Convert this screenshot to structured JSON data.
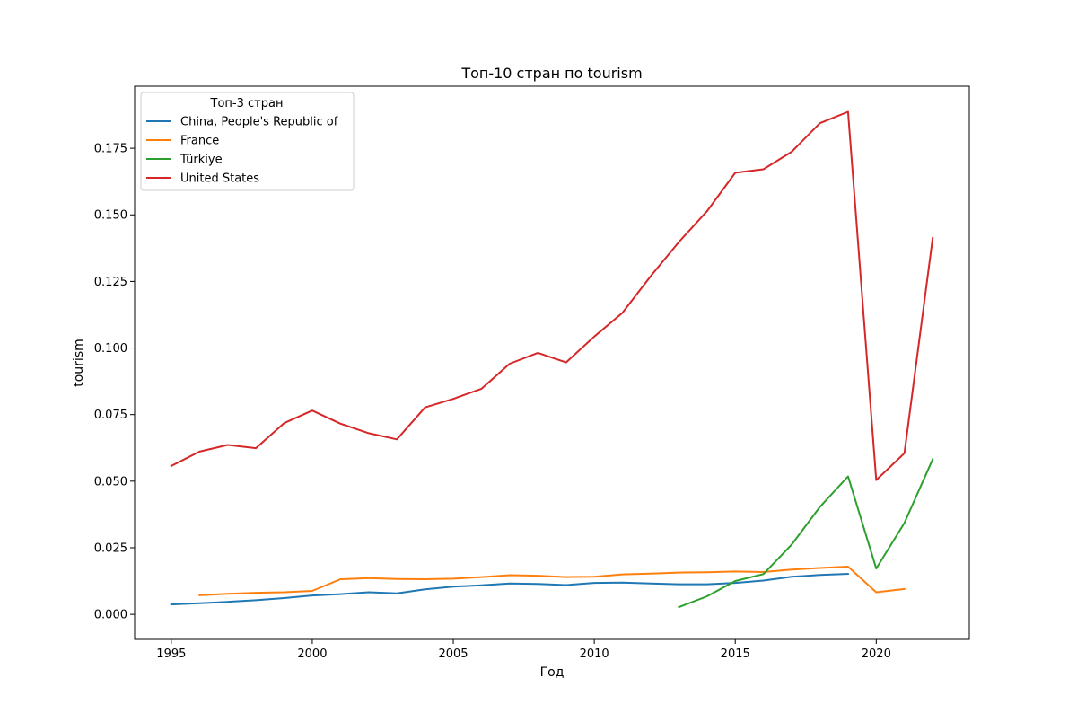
{
  "colors": {
    "china": "#1f77b4",
    "france": "#ff7f0e",
    "turkiye": "#2ca02c",
    "us": "#d62728",
    "axis": "#000000",
    "legend_border": "#cccccc",
    "background": "#ffffff"
  },
  "chart_data": {
    "type": "line",
    "title": "Топ-10 стран по tourism",
    "xlabel": "Год",
    "ylabel": "tourism",
    "xlim": [
      1993.7,
      2023.3
    ],
    "ylim": [
      -0.0094,
      0.1983
    ],
    "grid": false,
    "legend": {
      "title": "Топ-3 стран",
      "placement": "top-left"
    },
    "x_ticks": [
      {
        "value": 1995,
        "label": "1995"
      },
      {
        "value": 2000,
        "label": "2000"
      },
      {
        "value": 2005,
        "label": "2005"
      },
      {
        "value": 2010,
        "label": "2010"
      },
      {
        "value": 2015,
        "label": "2015"
      },
      {
        "value": 2020,
        "label": "2020"
      }
    ],
    "y_ticks": [
      {
        "value": 0.0,
        "label": "0.000"
      },
      {
        "value": 0.025,
        "label": "0.025"
      },
      {
        "value": 0.05,
        "label": "0.050"
      },
      {
        "value": 0.075,
        "label": "0.075"
      },
      {
        "value": 0.1,
        "label": "0.100"
      },
      {
        "value": 0.125,
        "label": "0.125"
      },
      {
        "value": 0.15,
        "label": "0.150"
      },
      {
        "value": 0.175,
        "label": "0.175"
      }
    ],
    "series": [
      {
        "name": "China, People's Republic of",
        "color_key": "china",
        "x": [
          1995,
          1996,
          1997,
          1998,
          1999,
          2000,
          2001,
          2002,
          2003,
          2004,
          2005,
          2006,
          2007,
          2008,
          2009,
          2010,
          2011,
          2012,
          2013,
          2014,
          2015,
          2016,
          2017,
          2018,
          2019
        ],
        "values": [
          0.0037,
          0.0042,
          0.0047,
          0.0053,
          0.0061,
          0.0071,
          0.0076,
          0.0083,
          0.0079,
          0.0094,
          0.0104,
          0.0109,
          0.0116,
          0.0114,
          0.011,
          0.0118,
          0.0119,
          0.0116,
          0.0113,
          0.0113,
          0.0118,
          0.0127,
          0.0141,
          0.0148,
          0.0152
        ]
      },
      {
        "name": "France",
        "color_key": "france",
        "x": [
          1996,
          1997,
          1998,
          1999,
          2000,
          2001,
          2002,
          2003,
          2004,
          2005,
          2006,
          2007,
          2008,
          2009,
          2010,
          2011,
          2012,
          2013,
          2014,
          2015,
          2016,
          2017,
          2018,
          2019,
          2020,
          2021
        ],
        "values": [
          0.0072,
          0.0077,
          0.0081,
          0.0083,
          0.0088,
          0.0132,
          0.0136,
          0.0133,
          0.0132,
          0.0134,
          0.014,
          0.0147,
          0.0145,
          0.014,
          0.0141,
          0.015,
          0.0153,
          0.0157,
          0.0158,
          0.0161,
          0.0159,
          0.0168,
          0.0174,
          0.0179,
          0.0083,
          0.0095
        ]
      },
      {
        "name": "Türkiye",
        "color_key": "turkiye",
        "x": [
          2013,
          2014,
          2015,
          2016,
          2017,
          2018,
          2019,
          2020,
          2021,
          2022
        ],
        "values": [
          0.0027,
          0.0068,
          0.0125,
          0.0151,
          0.0262,
          0.0403,
          0.0518,
          0.0172,
          0.0343,
          0.0582
        ]
      },
      {
        "name": "United States",
        "color_key": "us",
        "x": [
          1995,
          1996,
          1997,
          1998,
          1999,
          2000,
          2001,
          2002,
          2003,
          2004,
          2005,
          2006,
          2007,
          2008,
          2009,
          2010,
          2011,
          2012,
          2013,
          2014,
          2015,
          2016,
          2017,
          2018,
          2019,
          2020,
          2021,
          2022
        ],
        "values": [
          0.0557,
          0.0611,
          0.0636,
          0.0624,
          0.0718,
          0.0765,
          0.0716,
          0.068,
          0.0657,
          0.0777,
          0.0809,
          0.0847,
          0.0941,
          0.0982,
          0.0946,
          0.1043,
          0.1132,
          0.127,
          0.1398,
          0.1514,
          0.1658,
          0.1671,
          0.1737,
          0.1844,
          0.1887,
          0.0504,
          0.0605,
          0.1413
        ]
      }
    ]
  }
}
